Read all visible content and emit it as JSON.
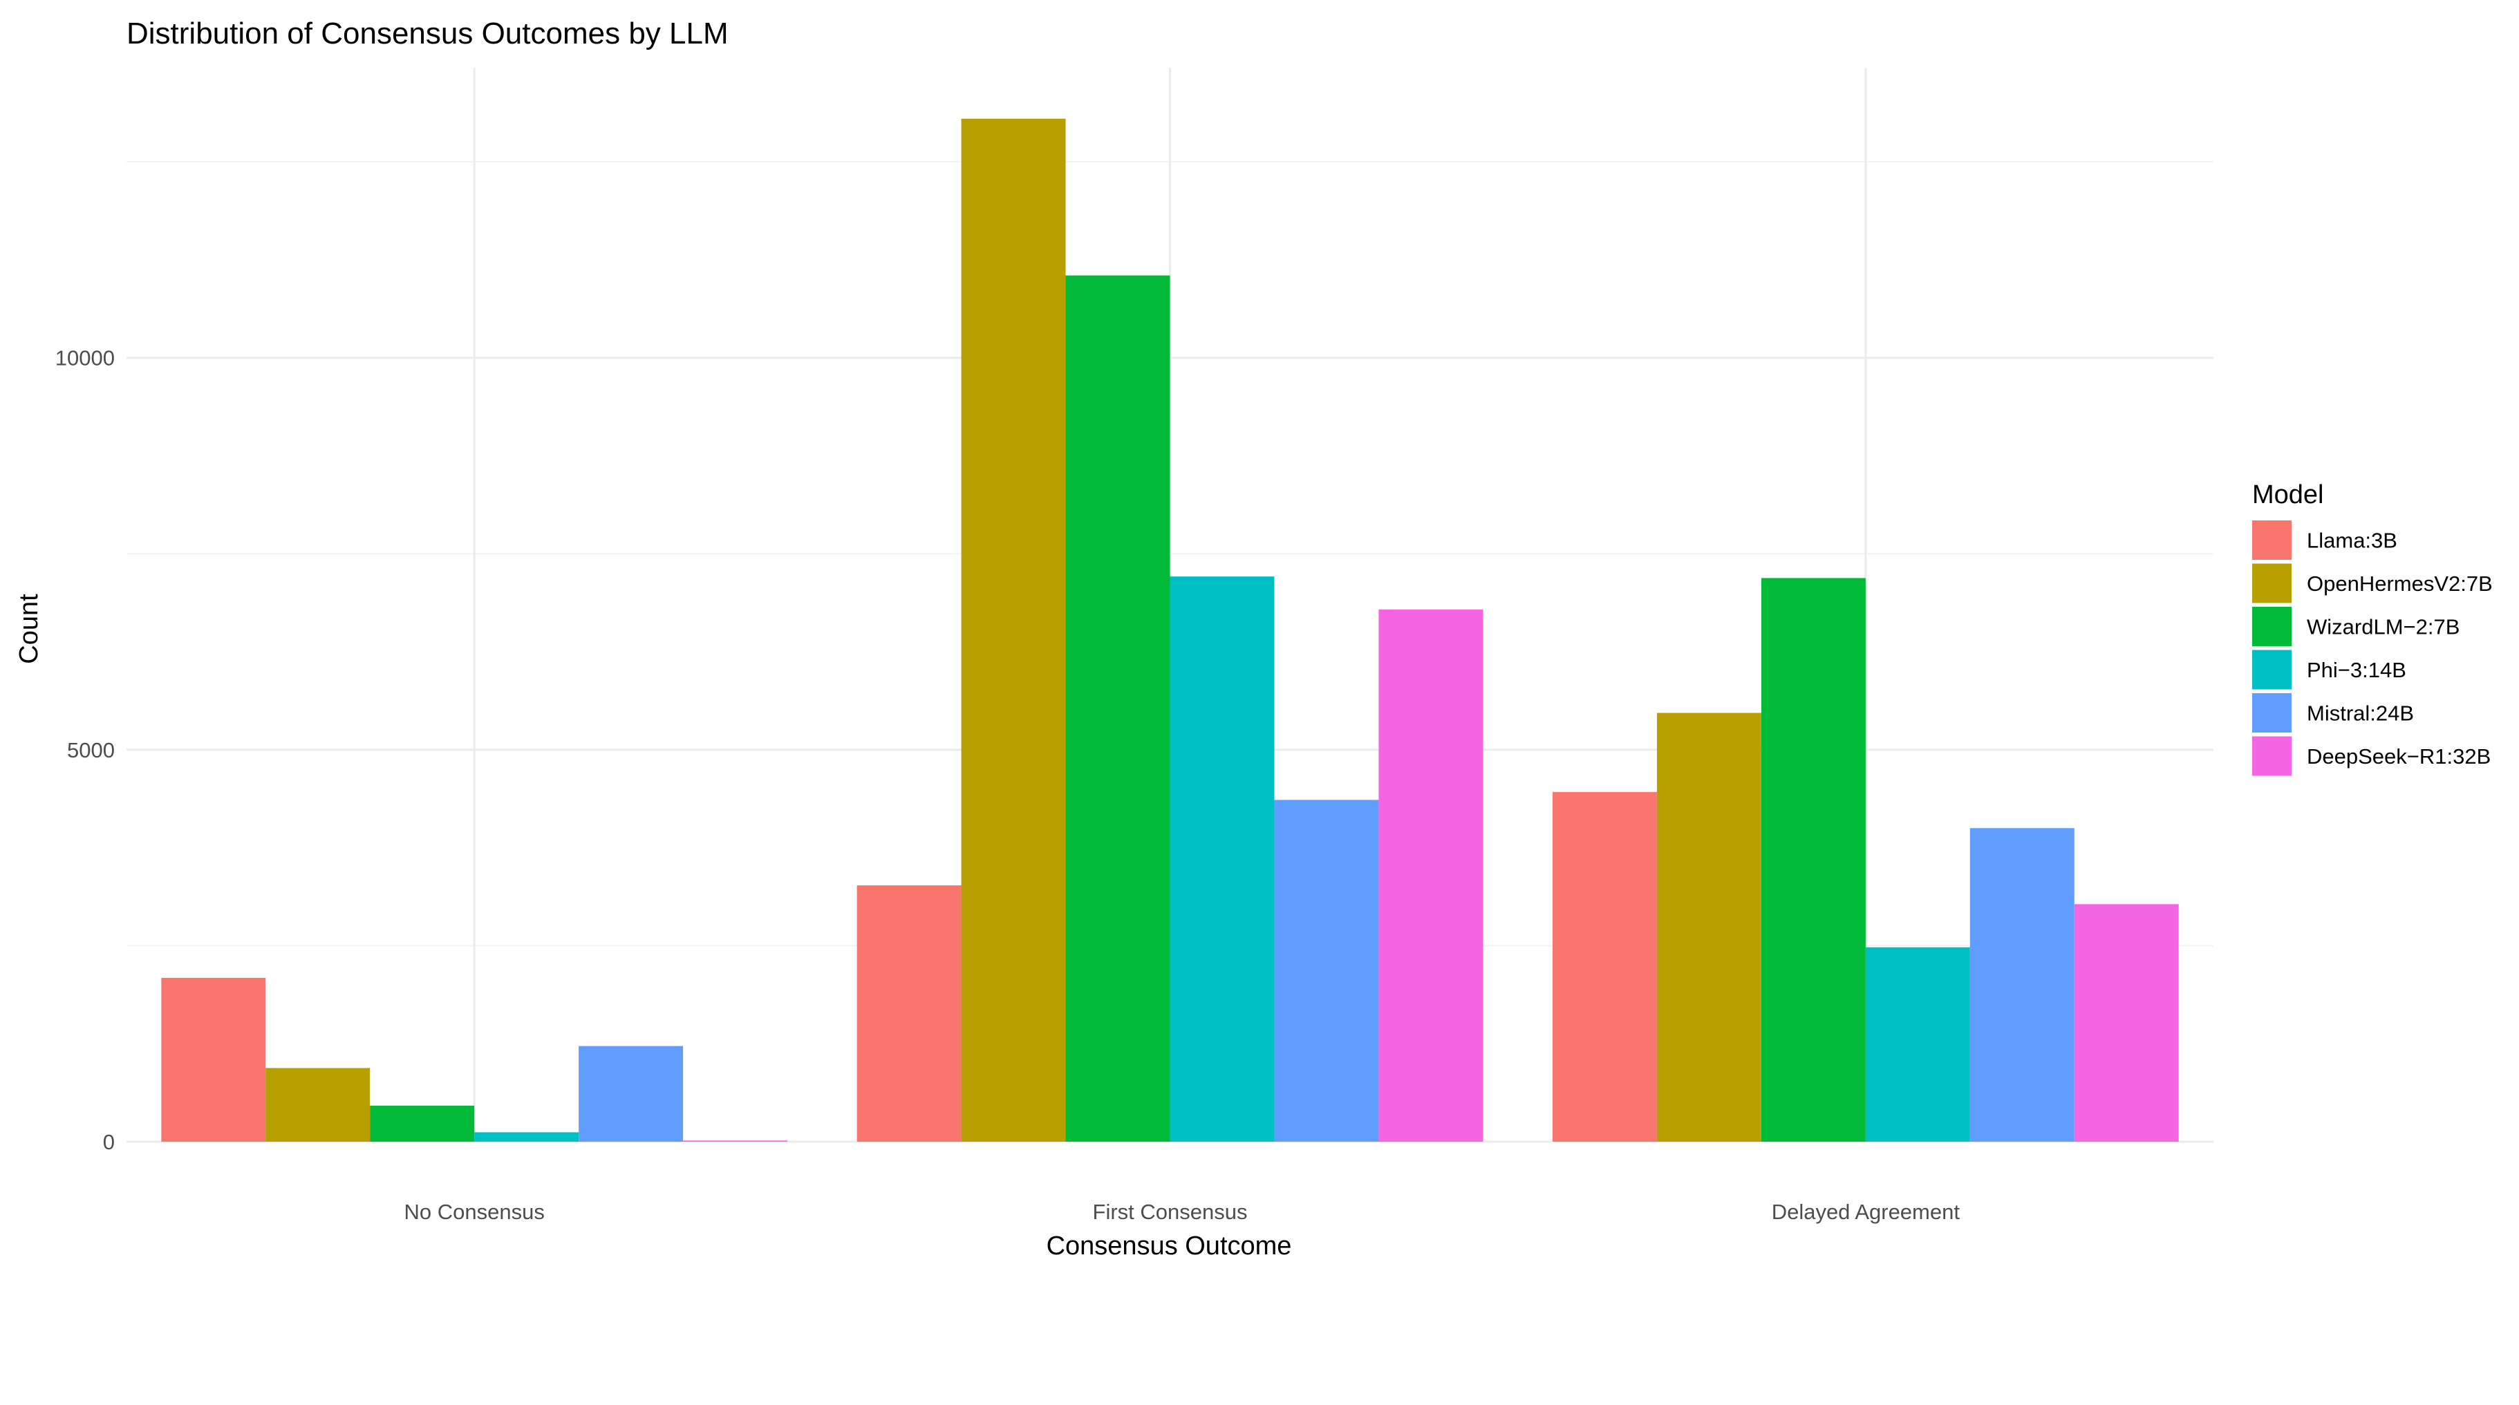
{
  "chart_data": {
    "type": "bar",
    "title": "Distribution of Consensus Outcomes by LLM",
    "xlabel": "Consensus Outcome",
    "ylabel": "Count",
    "categories": [
      "No Consensus",
      "First Consensus",
      "Delayed Agreement"
    ],
    "ylim": [
      0,
      13700
    ],
    "yticks": [
      0,
      5000,
      10000
    ],
    "ytick_labels": [
      "0",
      "5000",
      "10000"
    ],
    "grid": true,
    "legend": {
      "title": "Model",
      "placement": "right"
    },
    "series": [
      {
        "name": "Llama:3B",
        "color": "#F8766D",
        "values": [
          2090,
          3270,
          4460
        ]
      },
      {
        "name": "OpenHermesV2:7B",
        "color": "#B79F00",
        "values": [
          940,
          13050,
          5470
        ]
      },
      {
        "name": "WizardLM−2:7B",
        "color": "#00BA38",
        "values": [
          460,
          11050,
          7190
        ]
      },
      {
        "name": "Phi−3:14B",
        "color": "#00BFC4",
        "values": [
          120,
          7210,
          2480
        ]
      },
      {
        "name": "Mistral:24B",
        "color": "#619CFF",
        "values": [
          1220,
          4360,
          4000
        ]
      },
      {
        "name": "DeepSeek−R1:32B",
        "color": "#F564E3",
        "values": [
          15,
          6790,
          3030
        ]
      }
    ]
  }
}
